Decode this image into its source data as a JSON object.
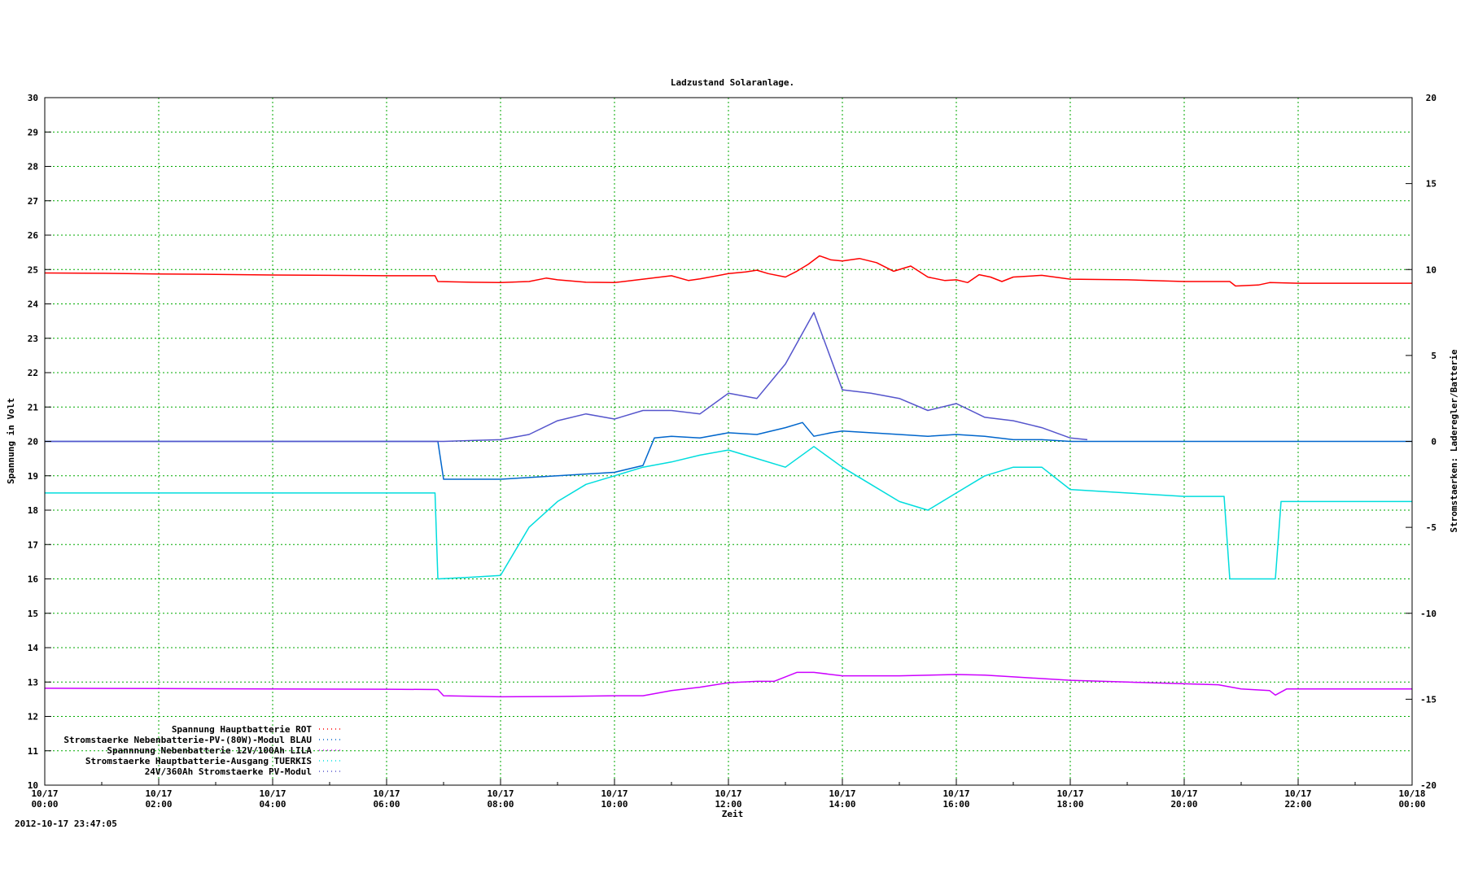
{
  "chart_data": {
    "type": "line",
    "title": "Ladzustand Solaranlage.",
    "xlabel": "Zeit",
    "ylabel": "Spannung in Volt",
    "y2label": "Stromstaerken: Laderegler/Batterie",
    "timestamp": "2012-10-17 23:47:05",
    "xlim": [
      0,
      24
    ],
    "ylim": [
      10,
      30
    ],
    "y2lim": [
      -20,
      20
    ],
    "grid": true,
    "legend_position": "bottom-left",
    "x_ticks": [
      {
        "x": 0,
        "date": "10/17",
        "time": "00:00"
      },
      {
        "x": 2,
        "date": "10/17",
        "time": "02:00"
      },
      {
        "x": 4,
        "date": "10/17",
        "time": "04:00"
      },
      {
        "x": 6,
        "date": "10/17",
        "time": "06:00"
      },
      {
        "x": 8,
        "date": "10/17",
        "time": "08:00"
      },
      {
        "x": 10,
        "date": "10/17",
        "time": "10:00"
      },
      {
        "x": 12,
        "date": "10/17",
        "time": "12:00"
      },
      {
        "x": 14,
        "date": "10/17",
        "time": "14:00"
      },
      {
        "x": 16,
        "date": "10/17",
        "time": "16:00"
      },
      {
        "x": 18,
        "date": "10/17",
        "time": "18:00"
      },
      {
        "x": 20,
        "date": "10/17",
        "time": "20:00"
      },
      {
        "x": 22,
        "date": "10/17",
        "time": "22:00"
      },
      {
        "x": 24,
        "date": "10/18",
        "time": "00:00"
      }
    ],
    "y_ticks": [
      10,
      11,
      12,
      13,
      14,
      15,
      16,
      17,
      18,
      19,
      20,
      21,
      22,
      23,
      24,
      25,
      26,
      27,
      28,
      29,
      30
    ],
    "y2_ticks": [
      -20,
      -15,
      -10,
      -5,
      0,
      5,
      10,
      15,
      20
    ],
    "series": [
      {
        "name": "Spannung Hauptbatterie ROT",
        "color": "#ff0000",
        "axis": "y",
        "x": [
          0,
          1,
          2,
          3,
          4,
          5,
          6,
          6.85,
          6.9,
          7.5,
          8,
          8.5,
          8.8,
          9,
          9.5,
          10,
          10.5,
          11,
          11.3,
          11.5,
          12,
          12.3,
          12.5,
          12.7,
          13,
          13.2,
          13.4,
          13.6,
          13.8,
          14,
          14.3,
          14.6,
          14.9,
          15.2,
          15.5,
          15.8,
          16,
          16.2,
          16.4,
          16.6,
          16.8,
          17,
          17.5,
          18,
          19,
          20,
          20.8,
          20.9,
          21.3,
          21.5,
          22,
          23,
          24
        ],
        "values": [
          24.9,
          24.89,
          24.87,
          24.86,
          24.84,
          24.83,
          24.82,
          24.82,
          24.65,
          24.63,
          24.62,
          24.65,
          24.75,
          24.7,
          24.63,
          24.62,
          24.72,
          24.82,
          24.68,
          24.73,
          24.88,
          24.93,
          24.98,
          24.88,
          24.78,
          24.95,
          25.15,
          25.4,
          25.28,
          25.25,
          25.32,
          25.2,
          24.95,
          25.1,
          24.78,
          24.68,
          24.7,
          24.62,
          24.85,
          24.78,
          24.65,
          24.78,
          24.83,
          24.72,
          24.7,
          24.65,
          24.65,
          24.52,
          24.55,
          24.62,
          24.6,
          24.6,
          24.6
        ]
      },
      {
        "name": "Stromstaerke Nebenbatterie-PV-(80W)-Modul BLAU",
        "color": "#0066cc",
        "axis": "y2",
        "x": [
          0,
          6.9,
          7,
          8,
          9,
          9.5,
          10,
          10.5,
          10.7,
          11,
          11.5,
          12,
          12.5,
          13,
          13.3,
          13.5,
          13.8,
          14,
          14.5,
          15,
          15.5,
          16,
          16.5,
          17,
          17.5,
          18,
          20,
          21,
          22,
          24
        ],
        "values": [
          0,
          0,
          -2.2,
          -2.2,
          -2,
          -1.9,
          -1.8,
          -1.4,
          0.2,
          0.3,
          0.2,
          0.5,
          0.4,
          0.8,
          1.1,
          0.3,
          0.5,
          0.6,
          0.5,
          0.4,
          0.3,
          0.4,
          0.3,
          0.1,
          0.1,
          0,
          0,
          0,
          0,
          0
        ]
      },
      {
        "name": "Spannnung Nebenbatterie 12V/100Ah LILA",
        "color": "#cc00ff",
        "axis": "y",
        "x": [
          0,
          2,
          4,
          6,
          6.9,
          7,
          8,
          9,
          10,
          10.5,
          11,
          11.5,
          12,
          12.5,
          12.8,
          13.2,
          13.5,
          14,
          15,
          16,
          16.5,
          17,
          18,
          19,
          20,
          20.6,
          21,
          21.5,
          21.6,
          21.8,
          22,
          23,
          24
        ],
        "values": [
          12.82,
          12.81,
          12.8,
          12.79,
          12.78,
          12.6,
          12.57,
          12.58,
          12.6,
          12.6,
          12.75,
          12.85,
          12.98,
          13.02,
          13.02,
          13.28,
          13.28,
          13.18,
          13.18,
          13.22,
          13.2,
          13.15,
          13.05,
          13.0,
          12.95,
          12.92,
          12.8,
          12.75,
          12.62,
          12.8,
          12.8,
          12.8,
          12.8
        ]
      },
      {
        "name": "Stromstaerke Hauptbatterie-Ausgang TUERKIS",
        "color": "#00dddd",
        "axis": "y2",
        "x": [
          0,
          2,
          4,
          6,
          6.85,
          6.9,
          7.5,
          8,
          8.5,
          9,
          9.5,
          10,
          10.5,
          11,
          11.5,
          12,
          12.5,
          13,
          13.5,
          14,
          14.5,
          15,
          15.5,
          16,
          16.5,
          17,
          17.5,
          18,
          19,
          20,
          20.7,
          20.8,
          21.6,
          21.7,
          22,
          23,
          24
        ],
        "values": [
          -3,
          -3,
          -3,
          -3,
          -3,
          -8,
          -7.9,
          -7.8,
          -5,
          -3.5,
          -2.5,
          -2,
          -1.5,
          -1.2,
          -0.8,
          -0.5,
          -1,
          -1.5,
          -0.3,
          -1.5,
          -2.5,
          -3.5,
          -4,
          -3,
          -2,
          -1.5,
          -1.5,
          -2.8,
          -3,
          -3.2,
          -3.2,
          -8,
          -8,
          -3.5,
          -3.5,
          -3.5,
          -3.5
        ]
      },
      {
        "name": "24V/360Ah Stromstaerke PV-Modul",
        "color": "#5555cc",
        "axis": "y2",
        "x": [
          0,
          7,
          7.5,
          8,
          8.5,
          9,
          9.5,
          10,
          10.5,
          11,
          11.5,
          12,
          12.5,
          13,
          13.5,
          14,
          14.5,
          15,
          15.5,
          16,
          16.5,
          17,
          17.5,
          18,
          18.3
        ],
        "values": [
          0,
          0,
          0.05,
          0.1,
          0.4,
          1.2,
          1.6,
          1.3,
          1.8,
          1.8,
          1.6,
          2.8,
          2.5,
          4.5,
          7.5,
          3,
          2.8,
          2.5,
          1.8,
          2.2,
          1.4,
          1.2,
          0.8,
          0.2,
          0.1
        ]
      }
    ]
  }
}
